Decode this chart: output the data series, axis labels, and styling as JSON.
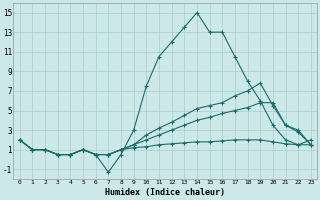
{
  "xlabel": "Humidex (Indice chaleur)",
  "bg_color": "#cce8e8",
  "grid_color": "#aacccc",
  "line_color": "#1a6b6b",
  "xlim": [
    -0.5,
    23.5
  ],
  "ylim": [
    -2,
    16
  ],
  "xticks": [
    0,
    1,
    2,
    3,
    4,
    5,
    6,
    7,
    8,
    9,
    10,
    11,
    12,
    13,
    14,
    15,
    16,
    17,
    18,
    19,
    20,
    21,
    22,
    23
  ],
  "yticks": [
    -1,
    1,
    3,
    5,
    7,
    9,
    11,
    13,
    15
  ],
  "series": [
    [
      2,
      1,
      1,
      0.5,
      0.5,
      1,
      0.5,
      -1.3,
      0.5,
      3,
      7.5,
      10.5,
      12,
      13.5,
      15,
      13,
      13,
      10.5,
      8,
      6,
      3.5,
      2,
      1.5,
      2
    ],
    [
      2,
      1,
      1,
      0.5,
      0.5,
      1,
      0.5,
      0.5,
      1.0,
      1.5,
      2.5,
      3.2,
      3.8,
      4.5,
      5.2,
      5.5,
      5.8,
      6.5,
      7,
      7.8,
      5.5,
      3.5,
      3.0,
      1.5
    ],
    [
      2,
      1,
      1,
      0.5,
      0.5,
      1,
      0.5,
      0.5,
      1.0,
      1.5,
      2.0,
      2.5,
      3.0,
      3.5,
      4.0,
      4.3,
      4.7,
      5.0,
      5.3,
      5.8,
      5.8,
      3.5,
      2.8,
      1.5
    ],
    [
      2,
      1,
      1,
      0.5,
      0.5,
      1,
      0.5,
      0.5,
      1.0,
      1.2,
      1.3,
      1.5,
      1.6,
      1.7,
      1.8,
      1.8,
      1.9,
      2.0,
      2.0,
      2.0,
      1.8,
      1.6,
      1.5,
      1.5
    ]
  ]
}
